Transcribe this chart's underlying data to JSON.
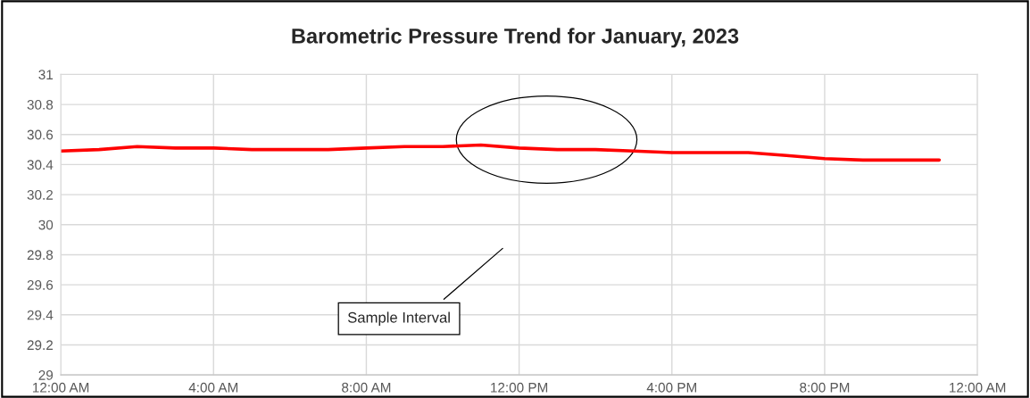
{
  "chart_data": {
    "type": "line",
    "title": "Barometric Pressure Trend for January, 2023",
    "x": [
      0,
      1,
      2,
      3,
      4,
      5,
      6,
      7,
      8,
      9,
      10,
      11,
      12,
      13,
      14,
      15,
      16,
      17,
      18,
      19,
      20,
      21,
      22,
      23
    ],
    "series": [
      {
        "color": "#ff0000",
        "values": [
          30.49,
          30.5,
          30.52,
          30.51,
          30.51,
          30.5,
          30.5,
          30.5,
          30.51,
          30.52,
          30.52,
          30.53,
          30.51,
          30.5,
          30.5,
          30.49,
          30.48,
          30.48,
          30.48,
          30.46,
          30.44,
          30.43,
          30.43,
          30.43
        ]
      }
    ],
    "xlim": [
      0,
      24
    ],
    "xticks": [
      {
        "value": 0,
        "label": "12:00 AM"
      },
      {
        "value": 4,
        "label": "4:00 AM"
      },
      {
        "value": 8,
        "label": "8:00 AM"
      },
      {
        "value": 12,
        "label": "12:00 PM"
      },
      {
        "value": 16,
        "label": "4:00 PM"
      },
      {
        "value": 20,
        "label": "8:00 PM"
      },
      {
        "value": 24,
        "label": "12:00 AM"
      }
    ],
    "ylim": [
      29,
      31
    ],
    "yticks": [
      29,
      29.2,
      29.4,
      29.6,
      29.8,
      30,
      30.2,
      30.4,
      30.6,
      30.8,
      31
    ],
    "grid": true,
    "line_style": "solid",
    "marker": "none",
    "annotations": [
      "Sample Interval"
    ]
  }
}
